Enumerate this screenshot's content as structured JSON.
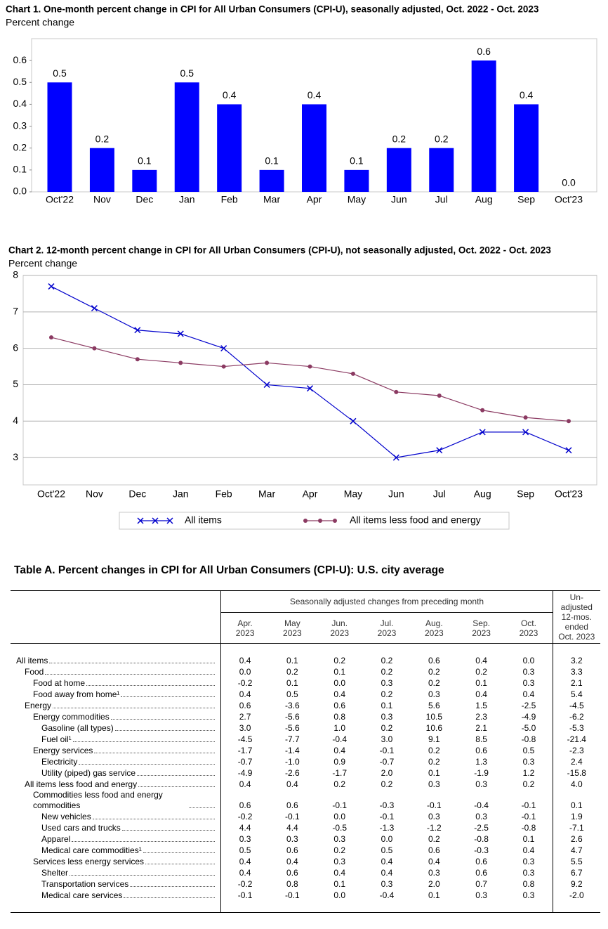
{
  "chart_data": [
    {
      "type": "bar",
      "title": "Chart 1. One-month percent change in CPI for All Urban Consumers (CPI-U), seasonally adjusted, Oct. 2022 - Oct. 2023",
      "y_label": "Percent change",
      "categories": [
        "Oct'22",
        "Nov",
        "Dec",
        "Jan",
        "Feb",
        "Mar",
        "Apr",
        "May",
        "Jun",
        "Jul",
        "Aug",
        "Sep",
        "Oct'23"
      ],
      "values": [
        0.5,
        0.2,
        0.1,
        0.5,
        0.4,
        0.1,
        0.4,
        0.1,
        0.2,
        0.2,
        0.6,
        0.4,
        0.0
      ],
      "value_labels": [
        "0.5",
        "0.2",
        "0.1",
        "0.5",
        "0.4",
        "0.1",
        "0.4",
        "0.1",
        "0.2",
        "0.2",
        "0.6",
        "0.4",
        "0.0"
      ],
      "color": "#0000ff",
      "ylim": [
        0,
        0.7
      ],
      "yticks": [
        {
          "value": 0,
          "label": "0.0"
        },
        0.1,
        0.2,
        0.3,
        0.4,
        0.5,
        0.6
      ],
      "grid": false
    },
    {
      "type": "line",
      "title": "Chart 2. 12-month percent change in CPI for All Urban Consumers (CPI-U), not seasonally adjusted, Oct. 2022 - Oct. 2023",
      "y_label": "Percent change",
      "categories": [
        "Oct'22",
        "Nov",
        "Dec",
        "Jan",
        "Feb",
        "Mar",
        "Apr",
        "May",
        "Jun",
        "Jul",
        "Aug",
        "Sep",
        "Oct'23"
      ],
      "series": [
        {
          "name": "All items",
          "color": "#0000cc",
          "marker": "x",
          "values": [
            7.7,
            7.1,
            6.5,
            6.4,
            6.0,
            5.0,
            4.9,
            4.0,
            3.0,
            3.2,
            3.7,
            3.7,
            3.2
          ]
        },
        {
          "name": "All items less food and energy",
          "color": "#8b3a62",
          "marker": "o",
          "values": [
            6.3,
            6.0,
            5.7,
            5.6,
            5.5,
            5.6,
            5.5,
            5.3,
            4.8,
            4.7,
            4.3,
            4.1,
            4.0
          ]
        }
      ],
      "ylim": [
        2.25,
        8
      ],
      "yticks": [
        3,
        4,
        5,
        6,
        7,
        8
      ],
      "grid": true,
      "legend": "bottom"
    }
  ],
  "table": {
    "title": "Table A. Percent changes in CPI for All Urban Consumers (CPI-U): U.S. city average",
    "group_header": "Seasonally adjusted changes from preceding month",
    "columns": [
      [
        "Apr.",
        "2023"
      ],
      [
        "May",
        "2023"
      ],
      [
        "Jun.",
        "2023"
      ],
      [
        "Jul.",
        "2023"
      ],
      [
        "Aug.",
        "2023"
      ],
      [
        "Sep.",
        "2023"
      ],
      [
        "Oct.",
        "2023"
      ]
    ],
    "last_column": [
      "Un-",
      "adjusted",
      "12-mos.",
      "ended",
      "Oct. 2023"
    ],
    "rows": [
      {
        "label": "All items",
        "values": [
          "0.4",
          "0.1",
          "0.2",
          "0.2",
          "0.6",
          "0.4",
          "0.0",
          "3.2"
        ]
      },
      {
        "label": "Food",
        "values": [
          "0.0",
          "0.2",
          "0.1",
          "0.2",
          "0.2",
          "0.2",
          "0.3",
          "3.3"
        ]
      },
      {
        "label": "Food at home",
        "values": [
          "-0.2",
          "0.1",
          "0.0",
          "0.3",
          "0.2",
          "0.1",
          "0.3",
          "2.1"
        ]
      },
      {
        "label": "Food away from home¹",
        "values": [
          "0.4",
          "0.5",
          "0.4",
          "0.2",
          "0.3",
          "0.4",
          "0.4",
          "5.4"
        ]
      },
      {
        "label": "Energy",
        "values": [
          "0.6",
          "-3.6",
          "0.6",
          "0.1",
          "5.6",
          "1.5",
          "-2.5",
          "-4.5"
        ]
      },
      {
        "label": "Energy commodities",
        "values": [
          "2.7",
          "-5.6",
          "0.8",
          "0.3",
          "10.5",
          "2.3",
          "-4.9",
          "-6.2"
        ]
      },
      {
        "label": "Gasoline (all types)",
        "values": [
          "3.0",
          "-5.6",
          "1.0",
          "0.2",
          "10.6",
          "2.1",
          "-5.0",
          "-5.3"
        ]
      },
      {
        "label": "Fuel oil¹",
        "values": [
          "-4.5",
          "-7.7",
          "-0.4",
          "3.0",
          "9.1",
          "8.5",
          "-0.8",
          "-21.4"
        ]
      },
      {
        "label": "Energy services",
        "values": [
          "-1.7",
          "-1.4",
          "0.4",
          "-0.1",
          "0.2",
          "0.6",
          "0.5",
          "-2.3"
        ]
      },
      {
        "label": "Electricity",
        "values": [
          "-0.7",
          "-1.0",
          "0.9",
          "-0.7",
          "0.2",
          "1.3",
          "0.3",
          "2.4"
        ]
      },
      {
        "label": "Utility (piped) gas service",
        "values": [
          "-4.9",
          "-2.6",
          "-1.7",
          "2.0",
          "0.1",
          "-1.9",
          "1.2",
          "-15.8"
        ]
      },
      {
        "label": "All items less food and energy",
        "values": [
          "0.4",
          "0.4",
          "0.2",
          "0.2",
          "0.3",
          "0.3",
          "0.2",
          "4.0"
        ]
      },
      {
        "label": "Commodities less food and energy commodities",
        "values": [
          "0.6",
          "0.6",
          "-0.1",
          "-0.3",
          "-0.1",
          "-0.4",
          "-0.1",
          "0.1"
        ]
      },
      {
        "label": "New vehicles",
        "values": [
          "-0.2",
          "-0.1",
          "0.0",
          "-0.1",
          "0.3",
          "0.3",
          "-0.1",
          "1.9"
        ]
      },
      {
        "label": "Used cars and trucks",
        "values": [
          "4.4",
          "4.4",
          "-0.5",
          "-1.3",
          "-1.2",
          "-2.5",
          "-0.8",
          "-7.1"
        ]
      },
      {
        "label": "Apparel",
        "values": [
          "0.3",
          "0.3",
          "0.3",
          "0.0",
          "0.2",
          "-0.8",
          "0.1",
          "2.6"
        ]
      },
      {
        "label": "Medical care commodities¹",
        "values": [
          "0.5",
          "0.6",
          "0.2",
          "0.5",
          "0.6",
          "-0.3",
          "0.4",
          "4.7"
        ]
      },
      {
        "label": "Services less energy services",
        "values": [
          "0.4",
          "0.4",
          "0.3",
          "0.4",
          "0.4",
          "0.6",
          "0.3",
          "5.5"
        ]
      },
      {
        "label": "Shelter",
        "values": [
          "0.4",
          "0.6",
          "0.4",
          "0.4",
          "0.3",
          "0.6",
          "0.3",
          "6.7"
        ]
      },
      {
        "label": "Transportation services",
        "values": [
          "-0.2",
          "0.8",
          "0.1",
          "0.3",
          "2.0",
          "0.7",
          "0.8",
          "9.2"
        ]
      },
      {
        "label": "Medical care services",
        "values": [
          "-0.1",
          "-0.1",
          "0.0",
          "-0.4",
          "0.1",
          "0.3",
          "0.3",
          "-2.0"
        ]
      }
    ]
  }
}
